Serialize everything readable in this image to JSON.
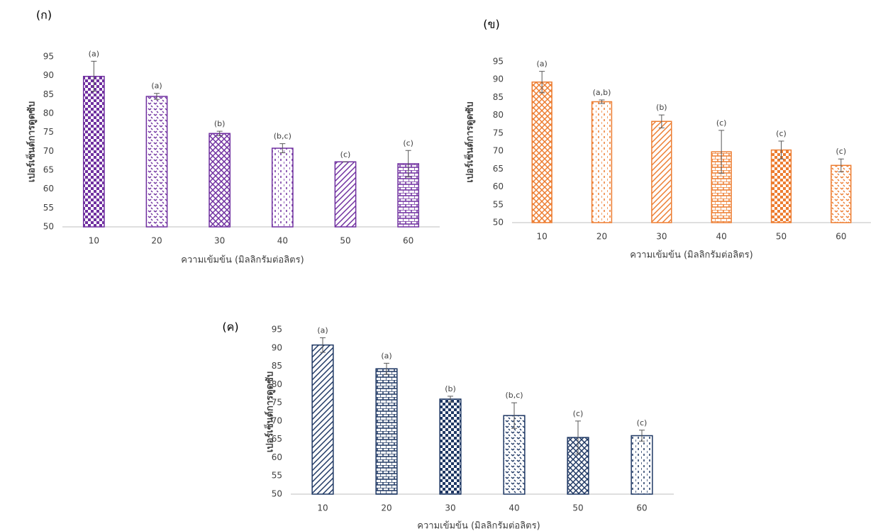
{
  "chart_data": [
    {
      "type": "bar",
      "panel_label": "(ก)",
      "y_label": "เปอร์เซ็นต์การดูดซับ",
      "x_label": "ความเข้มข้น (มิลลิกรัมต่อลิตร)",
      "categories": [
        "10",
        "20",
        "30",
        "40",
        "50",
        "60"
      ],
      "values": [
        89.8,
        84.5,
        74.7,
        70.8,
        67.2,
        66.7
      ],
      "errors": [
        4,
        0.8,
        0.6,
        1.2,
        0,
        3.5
      ],
      "annotations": [
        "(a)",
        "(a)",
        "(b)",
        "(b,c)",
        "(c)",
        "(c)"
      ],
      "color": "#7030a0",
      "ylim": [
        50,
        95
      ],
      "yticks": [
        50,
        55,
        60,
        65,
        70,
        75,
        80,
        85,
        90,
        95
      ]
    },
    {
      "type": "bar",
      "panel_label": "(ข)",
      "y_label": "เปอร์เซ็นต์การดูดซับ",
      "x_label": "ความเข้มข้น (มิลลิกรัมต่อลิตร)",
      "categories": [
        "10",
        "20",
        "30",
        "40",
        "50",
        "60"
      ],
      "values": [
        89.3,
        83.8,
        78.3,
        69.8,
        70.3,
        66
      ],
      "errors": [
        3,
        0.5,
        1.8,
        6,
        2.5,
        1.8
      ],
      "annotations": [
        "(a)",
        "(a,b)",
        "(b)",
        "(c)",
        "(c)",
        "(c)"
      ],
      "color": "#ed7d31",
      "ylim": [
        50,
        95
      ],
      "yticks": [
        50,
        55,
        60,
        65,
        70,
        75,
        80,
        85,
        90,
        95
      ]
    },
    {
      "type": "bar",
      "panel_label": "(ค)",
      "y_label": "เปอร์เซ็นต์การดูดซับ",
      "x_label": "ความเข้มข้น (มิลลิกรัมต่อลิตร)",
      "categories": [
        "10",
        "20",
        "30",
        "40",
        "50",
        "60"
      ],
      "values": [
        90.8,
        84.3,
        76,
        71.5,
        65.5,
        66
      ],
      "errors": [
        2,
        1.5,
        0.8,
        3.5,
        4.5,
        1.5
      ],
      "annotations": [
        "(a)",
        "(a)",
        "(b)",
        "(b,c)",
        "(c)",
        "(c)"
      ],
      "color": "#1f3864",
      "ylim": [
        50,
        95
      ],
      "yticks": [
        50,
        55,
        60,
        65,
        70,
        75,
        80,
        85,
        90,
        95
      ]
    }
  ]
}
